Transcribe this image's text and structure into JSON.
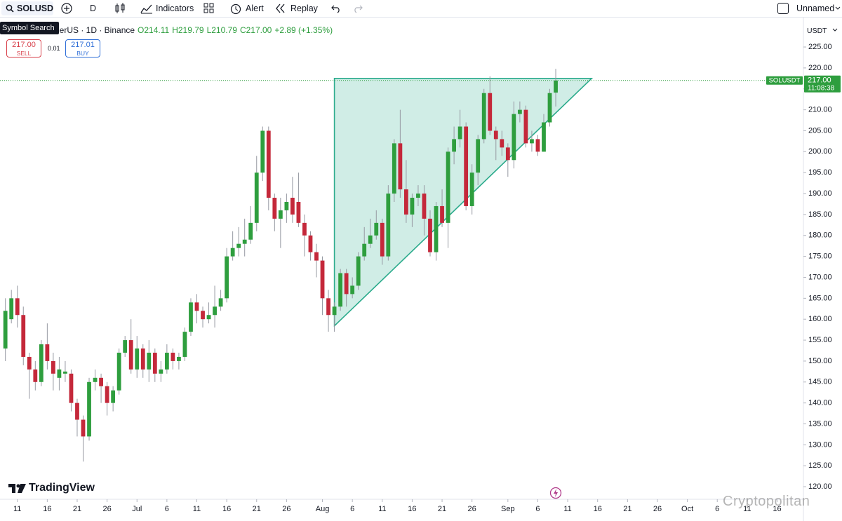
{
  "toolbar": {
    "symbol": "SOLUSD",
    "interval": "D",
    "indicators": "Indicators",
    "alert": "Alert",
    "replay": "Replay",
    "layout": "Unnamed"
  },
  "tooltip": "Symbol Search",
  "legend": {
    "name": "nerUS · 1D · Binance",
    "ohlc": [
      "O214.11",
      "H219.79",
      "L210.79",
      "C217.00",
      "+2.89 (+1.35%)"
    ]
  },
  "trade": {
    "sell_price": "217.00",
    "sell": "SELL",
    "spread": "0.01",
    "buy_price": "217.01",
    "buy": "BUY"
  },
  "currency": "USDT",
  "logo": "TradingView",
  "watermark": "Cryptopolitan",
  "chart_data": {
    "type": "candlestick",
    "up_color": "#2e9e3e",
    "down_color": "#c4283a",
    "xlim": [
      -0.9,
      133.4
    ],
    "ylim": [
      117,
      231.2
    ],
    "xticks": [
      {
        "value": 2,
        "label": "11"
      },
      {
        "value": 7,
        "label": "16"
      },
      {
        "value": 12,
        "label": "21"
      },
      {
        "value": 17,
        "label": "26"
      },
      {
        "value": 22,
        "label": "Jul"
      },
      {
        "value": 27,
        "label": "6"
      },
      {
        "value": 32,
        "label": "11"
      },
      {
        "value": 37,
        "label": "16"
      },
      {
        "value": 42,
        "label": "21"
      },
      {
        "value": 47,
        "label": "26"
      },
      {
        "value": 53,
        "label": "Aug"
      },
      {
        "value": 58,
        "label": "6"
      },
      {
        "value": 63,
        "label": "11"
      },
      {
        "value": 68,
        "label": "16"
      },
      {
        "value": 73,
        "label": "21"
      },
      {
        "value": 78,
        "label": "26"
      },
      {
        "value": 84,
        "label": "Sep"
      },
      {
        "value": 89,
        "label": "6"
      },
      {
        "value": 94,
        "label": "11"
      },
      {
        "value": 99,
        "label": "16"
      },
      {
        "value": 104,
        "label": "21"
      },
      {
        "value": 109,
        "label": "26"
      },
      {
        "value": 114,
        "label": "Oct"
      },
      {
        "value": 119,
        "label": "6"
      },
      {
        "value": 124,
        "label": "11"
      },
      {
        "value": 129,
        "label": "16"
      }
    ],
    "yticks": [
      {
        "value": 120,
        "label": "120.00"
      },
      {
        "value": 125,
        "label": "125.00"
      },
      {
        "value": 130,
        "label": "130.00"
      },
      {
        "value": 135,
        "label": "135.00"
      },
      {
        "value": 140,
        "label": "140.00"
      },
      {
        "value": 145,
        "label": "145.00"
      },
      {
        "value": 150,
        "label": "150.00"
      },
      {
        "value": 155,
        "label": "155.00"
      },
      {
        "value": 160,
        "label": "160.00"
      },
      {
        "value": 165,
        "label": "165.00"
      },
      {
        "value": 170,
        "label": "170.00"
      },
      {
        "value": 175,
        "label": "175.00"
      },
      {
        "value": 180,
        "label": "180.00"
      },
      {
        "value": 185,
        "label": "185.00"
      },
      {
        "value": 190,
        "label": "190.00"
      },
      {
        "value": 195,
        "label": "195.00"
      },
      {
        "value": 200,
        "label": "200.00"
      },
      {
        "value": 205,
        "label": "205.00"
      },
      {
        "value": 210,
        "label": "210.00"
      },
      {
        "value": 215,
        "label": "215.00"
      },
      {
        "value": 220,
        "label": "220.00"
      },
      {
        "value": 225,
        "label": "225.00"
      }
    ],
    "open": [
      153,
      160,
      165,
      161,
      151,
      148,
      145,
      154,
      150,
      146,
      147,
      147,
      140,
      136,
      132,
      145,
      146,
      144,
      140,
      143,
      152,
      155,
      148,
      153,
      148,
      152,
      147,
      148,
      152,
      150,
      151,
      157,
      164,
      162,
      160,
      161,
      163,
      165,
      175,
      177,
      178,
      179,
      183,
      195,
      205,
      189,
      184,
      186,
      189,
      188,
      183,
      180,
      176,
      174,
      165,
      161,
      163,
      171,
      166,
      168,
      175,
      178,
      180,
      183,
      175,
      190,
      202,
      191,
      185,
      189,
      190,
      184,
      176,
      187,
      183,
      200,
      203,
      206,
      187,
      195,
      203,
      214,
      205,
      203,
      201,
      198,
      209,
      210,
      202,
      203,
      200,
      207,
      214.11
    ],
    "high": [
      165,
      167,
      168,
      163,
      152,
      150,
      155,
      159,
      152,
      151,
      150,
      148,
      141,
      137,
      146,
      148,
      147,
      145,
      144,
      153,
      156,
      160,
      156,
      154,
      155,
      153,
      150,
      154,
      153,
      152,
      158,
      165,
      166,
      163,
      164,
      168,
      167,
      177,
      181,
      182,
      184,
      187,
      199,
      206,
      206,
      190,
      189,
      190,
      194,
      195,
      185,
      181,
      178,
      175,
      167,
      164,
      172,
      172,
      170,
      176,
      182,
      184,
      186,
      184,
      192,
      203,
      210,
      198,
      190,
      192,
      192,
      186,
      188,
      191,
      201,
      206,
      210,
      207,
      197,
      204,
      215,
      218,
      206,
      205,
      202,
      212,
      212,
      211,
      205,
      204,
      209,
      215,
      219.79
    ],
    "low": [
      150,
      159,
      158,
      149,
      141,
      143,
      144,
      148,
      143,
      143,
      145,
      138,
      132,
      126,
      131,
      143,
      140,
      137,
      138,
      142,
      151,
      147,
      146,
      146,
      145,
      145,
      145,
      147,
      148,
      148,
      150,
      156,
      159,
      158,
      159,
      158,
      162,
      164,
      174,
      175,
      175,
      178,
      181,
      193,
      186,
      181,
      177,
      183,
      183,
      182,
      175,
      174,
      170,
      161,
      157,
      157,
      162,
      163,
      165,
      167,
      174,
      177,
      179,
      173,
      174,
      188,
      189,
      183,
      182,
      187,
      180,
      175,
      174,
      182,
      177,
      197,
      201,
      186,
      185,
      192,
      202,
      204,
      198,
      199,
      194,
      196,
      207,
      201,
      200,
      199,
      200,
      206,
      210.79
    ],
    "close": [
      162,
      165,
      161,
      151,
      148,
      145,
      154,
      150,
      147,
      148,
      147.5,
      140,
      136,
      132,
      145,
      146,
      144,
      140,
      143,
      152,
      155,
      148,
      153,
      148,
      152,
      147,
      148,
      152,
      150,
      151,
      157,
      164,
      162,
      160,
      161,
      163,
      165,
      175,
      177,
      178,
      179,
      183,
      195,
      205,
      189,
      184,
      186,
      188,
      185,
      183,
      180,
      176,
      174,
      165,
      161,
      163,
      171,
      166,
      168,
      175,
      178,
      180,
      183,
      175,
      190,
      202,
      191,
      185,
      189,
      190,
      184,
      176,
      187,
      183,
      200,
      203,
      206,
      187,
      195,
      203,
      214,
      205,
      203,
      201,
      198,
      209,
      210,
      202,
      203,
      200,
      207,
      214,
      217
    ],
    "last_price": 217,
    "last_price_label": "217.00",
    "price_tag_symbol": "SOLUSDT",
    "countdown": "11:08:38",
    "drawing": {
      "type": "triangle",
      "color": "#2bab8c",
      "points": [
        {
          "x": 55,
          "y": 158.4
        },
        {
          "x": 55,
          "y": 217.5
        },
        {
          "x": 98,
          "y": 217.5
        }
      ]
    }
  }
}
